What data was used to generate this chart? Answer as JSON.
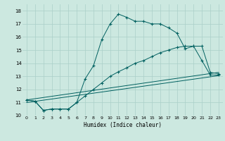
{
  "xlabel": "Humidex (Indice chaleur)",
  "bg_color": "#cce8e0",
  "grid_color": "#aacfc8",
  "line_color": "#006060",
  "xlim": [
    -0.5,
    23.5
  ],
  "ylim": [
    10,
    18.5
  ],
  "yticks": [
    10,
    11,
    12,
    13,
    14,
    15,
    16,
    17,
    18
  ],
  "xticks": [
    0,
    1,
    2,
    3,
    4,
    5,
    6,
    7,
    8,
    9,
    10,
    11,
    12,
    13,
    14,
    15,
    16,
    17,
    18,
    19,
    20,
    21,
    22,
    23
  ],
  "series1_x": [
    0,
    1,
    2,
    3,
    4,
    5,
    6,
    7,
    8,
    9,
    10,
    11,
    12,
    13,
    14,
    15,
    16,
    17,
    18,
    19,
    20,
    21,
    22,
    23
  ],
  "series1_y": [
    11.2,
    11.1,
    10.4,
    10.5,
    10.5,
    10.5,
    11.0,
    12.8,
    13.8,
    15.8,
    17.0,
    17.75,
    17.5,
    17.2,
    17.2,
    17.0,
    17.0,
    16.7,
    16.3,
    15.1,
    15.3,
    14.2,
    13.1,
    13.1
  ],
  "series2_x": [
    0,
    1,
    2,
    3,
    4,
    5,
    6,
    7,
    8,
    9,
    10,
    11,
    12,
    13,
    14,
    15,
    16,
    17,
    18,
    19,
    20,
    21,
    22,
    23
  ],
  "series2_y": [
    11.2,
    11.1,
    10.4,
    10.5,
    10.5,
    10.5,
    11.0,
    11.5,
    12.0,
    12.5,
    13.0,
    13.35,
    13.65,
    14.0,
    14.2,
    14.5,
    14.8,
    15.0,
    15.2,
    15.3,
    15.3,
    15.3,
    13.3,
    13.2
  ],
  "series3_x": [
    0,
    23
  ],
  "series3_y": [
    11.2,
    13.3
  ],
  "series4_x": [
    0,
    23
  ],
  "series4_y": [
    11.0,
    13.05
  ]
}
